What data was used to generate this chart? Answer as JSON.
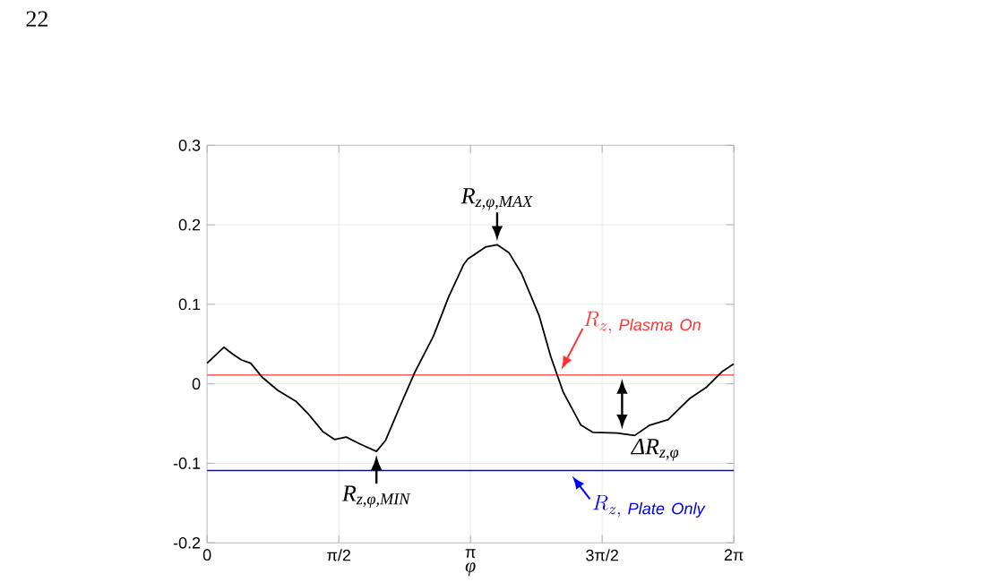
{
  "chart_data": {
    "type": "line",
    "xlabel": "φ",
    "xlim": [
      0,
      6.2832
    ],
    "ylim": [
      -0.2,
      0.3
    ],
    "xticks": [
      {
        "value": 0,
        "label": "0"
      },
      {
        "value": 1.5708,
        "label": "π/2"
      },
      {
        "value": 3.1416,
        "label": "π"
      },
      {
        "value": 4.7124,
        "label": "3π/2"
      },
      {
        "value": 6.2832,
        "label": "2π"
      }
    ],
    "yticks": [
      -0.2,
      -0.1,
      0,
      0.1,
      0.2,
      0.3
    ],
    "grid": true,
    "series": [
      {
        "color": "#000000",
        "x": [
          0,
          0.2,
          0.31,
          0.41,
          0.52,
          0.66,
          0.84,
          1.06,
          1.2,
          1.38,
          1.52,
          1.66,
          1.81,
          2.02,
          2.13,
          2.31,
          2.48,
          2.7,
          2.88,
          3.06,
          3.11,
          3.32,
          3.46,
          3.6,
          3.75,
          3.96,
          4.1,
          4.25,
          4.46,
          4.6,
          4.89,
          5.1,
          5.28,
          5.5,
          5.75,
          5.96,
          6.14,
          6.28
        ],
        "values": [
          0.026,
          0.046,
          0.037,
          0.03,
          0.026,
          0.008,
          -0.008,
          -0.022,
          -0.037,
          -0.06,
          -0.07,
          -0.067,
          -0.075,
          -0.085,
          -0.071,
          -0.026,
          0.015,
          0.06,
          0.109,
          0.15,
          0.157,
          0.172,
          0.175,
          0.165,
          0.139,
          0.086,
          0.034,
          -0.011,
          -0.052,
          -0.061,
          -0.062,
          -0.065,
          -0.052,
          -0.045,
          -0.019,
          -0.004,
          0.015,
          0.025
        ]
      }
    ],
    "ref_lines": [
      {
        "axis": "y",
        "value": 0.011,
        "label": "R_{z,\\ \\mathit{Plasma\\ On}}",
        "color": "#ff3333"
      },
      {
        "axis": "y",
        "value": -0.109,
        "label": "R_{z,\\ \\mathit{Plate\\ Only}}",
        "color": "#0000ff"
      }
    ],
    "annotations": [
      "22",
      {
        "text": "R$_{z,φ,MAX}$",
        "x": 3.46,
        "y": 0.175
      },
      {
        "text": "R$_{z,φ,MIN}$",
        "x": 2.02,
        "y": -0.085
      },
      {
        "text": "ΔR$_{z,φ}$",
        "x": 4.95,
        "y": -0.062
      }
    ]
  }
}
